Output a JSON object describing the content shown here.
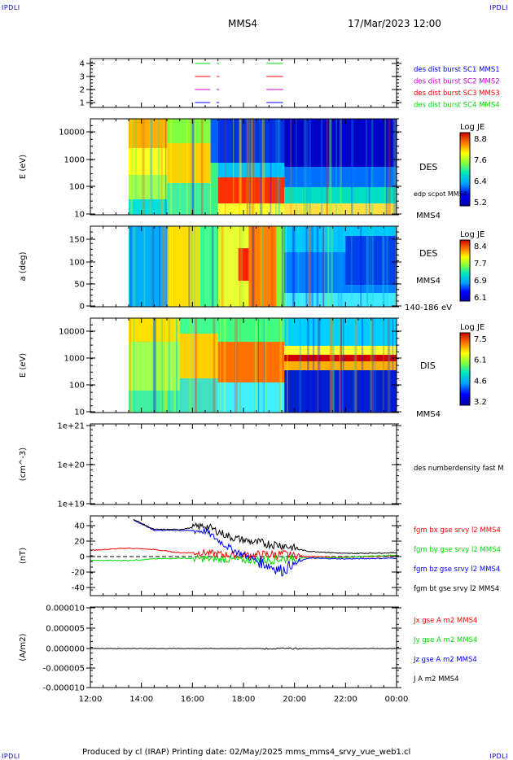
{
  "corners": {
    "tl": "IPDLI",
    "tr": "IPDLI",
    "bl": "IPDLI",
    "br": "IPDLI"
  },
  "header": {
    "title": "MMS4",
    "datetime": "17/Mar/2023 12:00"
  },
  "footer": "Produced by cl (IRAP)   Printing date: 02/May/2025   mms_mms4_srvy_vue_web1.cl",
  "colors": {
    "blue": "#0000ff",
    "magenta": "#cc00cc",
    "red": "#ff0000",
    "green": "#00dd00",
    "black": "#000000"
  },
  "chart_data": [
    {
      "type": "line",
      "panel": "spacecraft-availability",
      "y_ticks": [
        "1",
        "2",
        "3",
        "4"
      ],
      "legend": [
        {
          "text": "des dist burst SC1 MMS1",
          "color": "#0000ff"
        },
        {
          "text": "des dist burst SC2 MMS2",
          "color": "#cc00cc"
        },
        {
          "text": "des dist burst SC3 MMS3",
          "color": "#ff0000"
        },
        {
          "text": "des dist burst SC4 MMS4",
          "color": "#00dd00"
        }
      ],
      "intervals_hours": [
        [
          16.1,
          16.7
        ],
        [
          16.95,
          17.05
        ],
        [
          18.9,
          19.55
        ]
      ]
    },
    {
      "type": "heatmap",
      "panel": "des-energy",
      "ylabel": "E (eV)",
      "yscale": "log",
      "y_ticks": [
        "10",
        "100",
        "1000",
        "10000"
      ],
      "right_labels": [
        "DES",
        "edp scpot MMS4",
        "MMS4"
      ],
      "colorbar": {
        "title": "Log JE",
        "ticks": [
          "8.8",
          "7.6",
          "6.4",
          "5.2"
        ]
      }
    },
    {
      "type": "heatmap",
      "panel": "des-pitch-angle",
      "ylabel": "a (deg)",
      "y_ticks": [
        "0",
        "50",
        "100",
        "150"
      ],
      "right_labels": [
        "DES",
        "MMS4",
        "140-186 eV"
      ],
      "colorbar": {
        "title": "Log JE",
        "ticks": [
          "8.4",
          "7.7",
          "6.9",
          "6.1"
        ]
      }
    },
    {
      "type": "heatmap",
      "panel": "dis-energy",
      "ylabel": "E (eV)",
      "yscale": "log",
      "y_ticks": [
        "10",
        "100",
        "1000",
        "10000"
      ],
      "right_labels": [
        "DIS",
        "MMS4"
      ],
      "colorbar": {
        "title": "Log JE",
        "ticks": [
          "7.5",
          "6.1",
          "4.6",
          "3.2"
        ]
      }
    },
    {
      "type": "line",
      "panel": "density",
      "ylabel": "(cm^-3)",
      "yscale": "log",
      "y_ticks": [
        "1e+19",
        "1e+20",
        "1e+21"
      ],
      "series": [
        {
          "name": "des numberdensity fast M",
          "values": []
        }
      ]
    },
    {
      "type": "line",
      "panel": "magnetic-field",
      "ylabel": "(nT)",
      "ylim": [
        -50,
        50
      ],
      "y_ticks": [
        "40",
        "20",
        "0",
        "-20",
        "-40"
      ],
      "series": [
        {
          "name": "fgm bx gse srvy l2 MMS4",
          "color": "#ff0000",
          "x": [
            12.0,
            13.5,
            14.5,
            15.5,
            16.5,
            17.5,
            18.5,
            19.5,
            20.5,
            22.0,
            24.0
          ],
          "y": [
            8,
            11,
            9,
            5,
            5,
            2,
            2,
            3,
            0,
            -1,
            1
          ]
        },
        {
          "name": "fgm by gse srvy l2 MMS4",
          "color": "#00dd00",
          "x": [
            12.0,
            13.5,
            14.5,
            15.5,
            16.5,
            17.5,
            18.5,
            19.5,
            20.5,
            22.0,
            24.0
          ],
          "y": [
            -5,
            -5,
            -3,
            -2,
            -3,
            -4,
            -5,
            -3,
            -2,
            -1,
            2
          ]
        },
        {
          "name": "fgm bz gse srvy l2 MMS4",
          "color": "#0000ff",
          "x": [
            13.7,
            14.5,
            15.5,
            16.5,
            17.5,
            18.5,
            19.5,
            20.5,
            22.0,
            24.0
          ],
          "y": [
            47,
            34,
            34,
            33,
            10,
            -5,
            -18,
            -2,
            -3,
            -2
          ]
        },
        {
          "name": "fgm bt gse srvy l2 MMS4",
          "color": "#000000",
          "x": [
            13.7,
            14.5,
            15.5,
            16.5,
            17.5,
            18.5,
            19.5,
            20.5,
            22.0,
            24.0
          ],
          "y": [
            48,
            35,
            35,
            40,
            25,
            18,
            15,
            7,
            4,
            5
          ]
        }
      ]
    },
    {
      "type": "line",
      "panel": "current-density",
      "ylabel": "(A/m2)",
      "ylim": [
        -1e-05,
        1e-05
      ],
      "y_ticks": [
        "0.000010",
        "0.000005",
        "0.000000",
        "-0.000005",
        "-0.000010"
      ],
      "series": [
        {
          "name": "Jx gse A m2 MMS4",
          "color": "#ff0000",
          "values": []
        },
        {
          "name": "Jy gse A m2 MMS4",
          "color": "#00dd00",
          "values": []
        },
        {
          "name": "Jz gse A m2 MMS4",
          "color": "#0000ff",
          "values": []
        },
        {
          "name": "J A m2 MMS4",
          "color": "#000000",
          "values": []
        }
      ],
      "x_ticks": [
        "12:00",
        "14:00",
        "16:00",
        "18:00",
        "20:00",
        "22:00",
        "00:00"
      ]
    }
  ]
}
